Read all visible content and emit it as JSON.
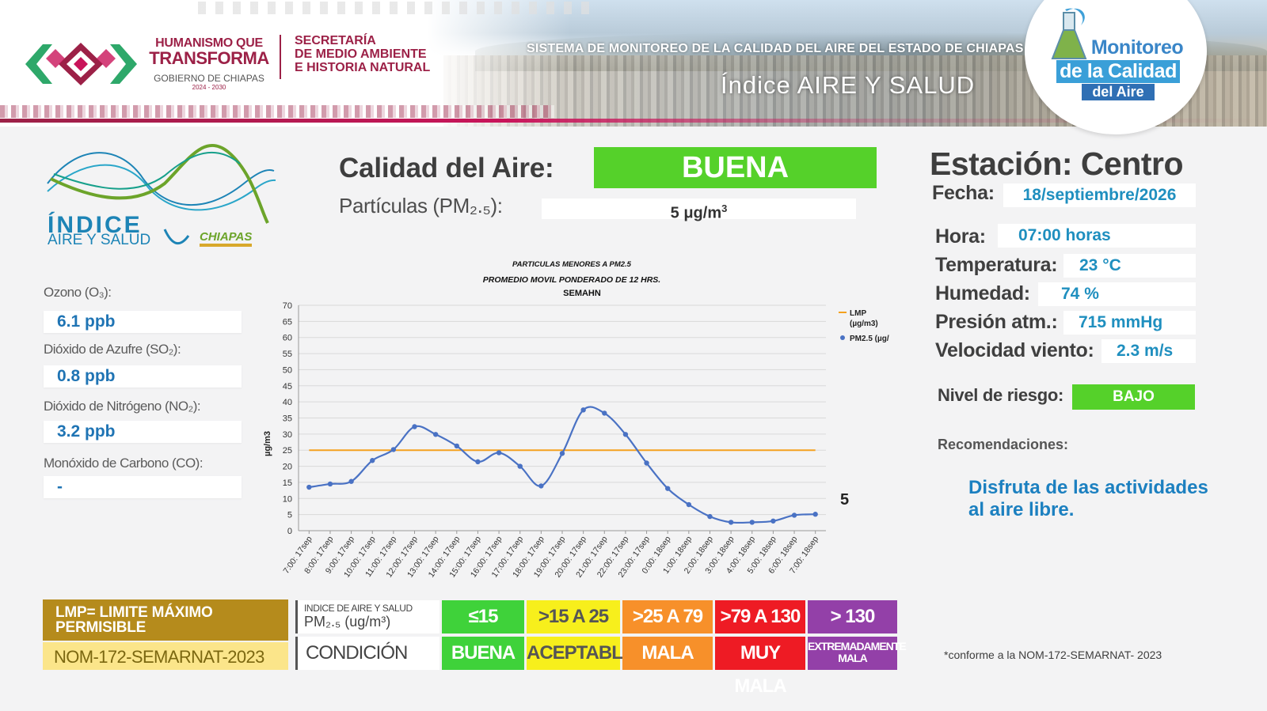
{
  "header": {
    "gov_line1": "HUMANISMO QUE",
    "gov_line2": "TRANSFORMA",
    "gov_line3": "GOBIERNO DE CHIAPAS",
    "gov_line4": "2024 - 2030",
    "sec_line1": "SECRETARÍA",
    "sec_line2": "DE MEDIO AMBIENTE",
    "sec_line3": "E HISTORIA NATURAL",
    "system_title": "SISTEMA DE MONITOREO DE LA CALIDAD DEL AIRE DEL ESTADO DE CHIAPAS",
    "index_title": "Índice AIRE Y SALUD",
    "badge_line1": "Monitoreo",
    "badge_line2": "de la Calidad",
    "badge_line3": "del Aire"
  },
  "logo": {
    "line1": "ÍNDICE",
    "line2": "AIRE Y SALUD",
    "line3": "CHIAPAS"
  },
  "pollutants": [
    {
      "label": "Ozono (O₃):",
      "value": "6.1 ppb"
    },
    {
      "label": "Dióxido de Azufre  (SO₂):",
      "value": "0.8 ppb"
    },
    {
      "label": "Dióxido de Nitrógeno (NO₂):",
      "value": "3.2 ppb"
    },
    {
      "label": "Monóxido de Carbono (CO):",
      "value": "-"
    }
  ],
  "air_quality": {
    "label": "Calidad del Aire:",
    "status": "BUENA",
    "status_color": "#55d12a",
    "pm_label": "Partículas (PM₂.₅):",
    "pm_value": "5 μg/m³"
  },
  "station": {
    "title": "Estación: Centro",
    "fields": [
      {
        "label": "Fecha:",
        "value": "18/septiembre/2026"
      },
      {
        "label": "Hora:",
        "value": "07:00 horas"
      },
      {
        "label": "Temperatura:",
        "value": "23 °C"
      },
      {
        "label": "Humedad:",
        "value": "74 %"
      },
      {
        "label": "Presión atm.:",
        "value": "715 mmHg"
      },
      {
        "label": "Velocidad viento:",
        "value": "2.3 m/s"
      }
    ],
    "risk_label": "Nivel de riesgo:",
    "risk_value": "BAJO",
    "recommendations_label": "Recomendaciones:",
    "recommendation": "Disfruta de las actividades al aire libre.",
    "norm_note": "*conforme a la NOM-172-SEMARNAT- 2023"
  },
  "chart_data": {
    "type": "line",
    "title_line1": "PARTICULAS MENORES A PM2.5",
    "title_line2": "PROMEDIO MOVIL PONDERADO DE 12 HRS.",
    "title_line3": "SEMAHN",
    "ylabel": "µg/m3",
    "ylim": [
      0,
      70
    ],
    "yticks": [
      0,
      5,
      10,
      15,
      20,
      25,
      30,
      35,
      40,
      45,
      50,
      55,
      60,
      65,
      70
    ],
    "categories": [
      "7:00: 17sep",
      "8:00: 17sep",
      "9:00: 17sep",
      "10:00: 17sep",
      "11:00: 17sep",
      "12:00: 17sep",
      "13:00: 17sep",
      "14:00: 17sep",
      "15:00: 17sep",
      "16:00: 17sep",
      "17:00: 17sep",
      "18:00: 17sep",
      "19:00: 17sep",
      "20:00: 17sep",
      "21:00: 17sep",
      "22:00: 17sep",
      "23:00: 17sep",
      "0:00: 18sep",
      "1:00: 18sep",
      "2:00: 18sep",
      "3:00: 18sep",
      "4:00: 18sep",
      "5:00: 18sep",
      "6:00: 18sep",
      "7:00: 18sep"
    ],
    "series": [
      {
        "name": "LMP (µg/m3)",
        "color": "#f4a11f",
        "values": [
          25,
          25,
          25,
          25,
          25,
          25,
          25,
          25,
          25,
          25,
          25,
          25,
          25,
          25,
          25,
          25,
          25,
          25,
          25,
          25,
          25,
          25,
          25,
          25,
          25
        ]
      },
      {
        "name": "PM2.5  (µg/",
        "color": "#4a72c4",
        "values": [
          13.5,
          14.5,
          15.3,
          21.8,
          25.2,
          32.3,
          29.9,
          26.3,
          21.4,
          24.2,
          20.0,
          13.9,
          24.0,
          37.5,
          36.5,
          29.9,
          21.0,
          13.1,
          8.1,
          4.4,
          2.6,
          2.6,
          3.0,
          4.8,
          5.1
        ]
      }
    ],
    "last_value_label": "5",
    "legend": "top-right",
    "grid": true
  },
  "scale": {
    "header_line1": "INDICE DE AIRE Y SALUD",
    "header_line2": "PM₂.₅ (ug/m³)",
    "condition_label": "CONDICIÓN",
    "ranges": [
      {
        "range": "≤15",
        "condition": "BUENA",
        "color": "#3fd23a",
        "text_color": "#ffffff"
      },
      {
        "range": ">15 A 25",
        "condition": "ACEPTABLE",
        "color": "#f7ef1c",
        "text_color": "#555555"
      },
      {
        "range": ">25 A 79",
        "condition": "MALA",
        "color": "#f7902a",
        "text_color": "#ffffff"
      },
      {
        "range": ">79 A 130",
        "condition": "MUY MALA",
        "color": "#ee1b24",
        "text_color": "#ffffff"
      },
      {
        "range": "> 130",
        "condition": "EXTREMADAMENTE MALA",
        "color": "#9340a8",
        "text_color": "#ffffff"
      }
    ],
    "lmp_text": "LMP= LIMITE MÁXIMO PERMISIBLE",
    "nom_text": "NOM-172-SEMARNAT-2023"
  }
}
